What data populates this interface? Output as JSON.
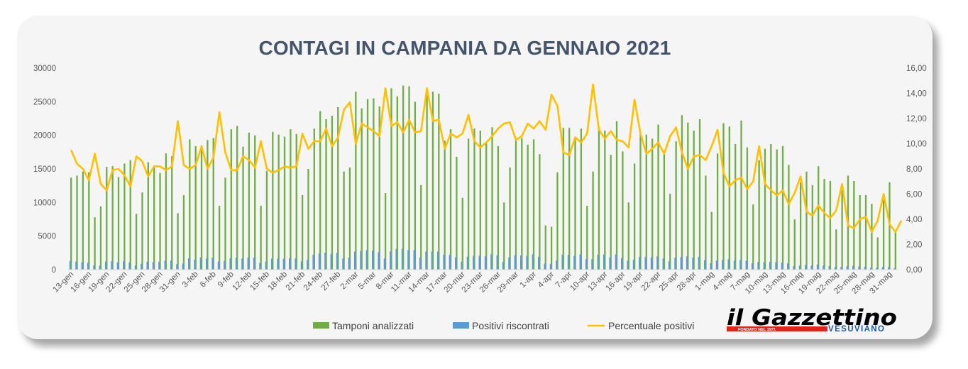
{
  "title": "CONTAGI IN CAMPANIA DA GENNAIO 2021",
  "legend": {
    "tamponi": "Tamponi analizzati",
    "positivi": "Positivi riscontrati",
    "percentuale": "Percentuale positivi"
  },
  "logo": {
    "name": "il Gazzettino",
    "subtitle": "VESUVIANO",
    "founded": "FONDATO NEL 1971"
  },
  "colors": {
    "tamponi": "#70ad47",
    "positivi": "#5b9bd5",
    "percentuale": "#ffc000",
    "axis_text": "#595959",
    "title": "#44546a"
  },
  "chart_data": {
    "type": "bar",
    "title": "CONTAGI IN CAMPANIA DA GENNAIO 2021",
    "y_left": {
      "ticks": [
        "0",
        "5000",
        "10000",
        "15000",
        "20000",
        "25000",
        "30000"
      ],
      "range": [
        0,
        30000
      ]
    },
    "y_right": {
      "ticks": [
        "0,00",
        "2,00",
        "4,00",
        "6,00",
        "8,00",
        "10,00",
        "12,00",
        "14,00",
        "16,00"
      ],
      "range": [
        0,
        16
      ]
    },
    "x_tick_labels": [
      "13-gen",
      "16-gen",
      "19-gen",
      "22-gen",
      "25-gen",
      "28-gen",
      "31-gen",
      "3-feb",
      "6-feb",
      "9-feb",
      "12-feb",
      "15-feb",
      "18-feb",
      "21-feb",
      "24-feb",
      "27-feb",
      "2-mar",
      "5-mar",
      "8-mar",
      "11-mar",
      "14-mar",
      "17-mar",
      "20-mar",
      "23-mar",
      "26-mar",
      "29-mar",
      "1-apr",
      "4-apr",
      "7-apr",
      "10-apr",
      "13-apr",
      "16-apr",
      "19-apr",
      "22-apr",
      "25-apr",
      "28-apr",
      "1-mag",
      "4-mag",
      "7-mag",
      "10-mag",
      "13-mag",
      "16-mag",
      "19-mag",
      "22-mag",
      "25-mag",
      "28-mag",
      "31-mag"
    ],
    "grid": false,
    "legend_position": "bottom",
    "series": [
      {
        "name": "Tamponi analizzati",
        "type": "bar",
        "values": [
          13700,
          14000,
          14600,
          14500,
          7800,
          9400,
          15300,
          15400,
          13800,
          15800,
          16300,
          8300,
          11500,
          16000,
          15200,
          14400,
          17300,
          16900,
          8400,
          11100,
          19400,
          18400,
          18500,
          19300,
          19600,
          9500,
          13700,
          20900,
          21400,
          18300,
          20400,
          20000,
          9500,
          14700,
          20500,
          20100,
          19800,
          20900,
          20200,
          11100,
          15000,
          21000,
          23600,
          22400,
          22900,
          24200,
          14600,
          15200,
          26500,
          24000,
          25400,
          25500,
          24300,
          11400,
          27000,
          25800,
          27400,
          27300,
          25000,
          12600,
          26000,
          26500,
          26200,
          19200,
          20900,
          16800,
          10700,
          19500,
          21000,
          20700,
          18800,
          21200,
          18400,
          10000,
          15200,
          19200,
          19600,
          18600,
          19400,
          17200,
          6600,
          6400,
          14500,
          21100,
          21100,
          19600,
          21000,
          9500,
          14600,
          21200,
          20700,
          17100,
          22100,
          17600,
          10000,
          15800,
          20300,
          20100,
          19500,
          21600,
          17700,
          11300,
          19100,
          23000,
          21900,
          20700,
          22400,
          14000,
          8600,
          17300,
          21800,
          21300,
          18700,
          22200,
          18200,
          9700,
          16300,
          18000,
          18700,
          17900,
          18400,
          15600,
          7500,
          13000,
          14600,
          12600,
          15400,
          13500,
          13200,
          6000,
          11800,
          14000,
          13200,
          11100,
          11100,
          9800,
          4800,
          10400,
          13000,
          5700
        ]
      },
      {
        "name": "Positivi riscontrati",
        "type": "bar",
        "values": [
          1300,
          1180,
          1100,
          1030,
          620,
          600,
          1200,
          1240,
          1090,
          1250,
          1090,
          620,
          860,
          1170,
          1130,
          1160,
          1320,
          1350,
          820,
          900,
          1700,
          1500,
          1800,
          1650,
          1780,
          1200,
          1300,
          1700,
          1800,
          1650,
          1800,
          1790,
          1000,
          1200,
          1630,
          1620,
          1630,
          1700,
          1650,
          1200,
          1450,
          2200,
          2400,
          2500,
          2300,
          2500,
          1650,
          1800,
          2700,
          2800,
          2900,
          2800,
          2600,
          1660,
          2700,
          3100,
          3100,
          2900,
          2900,
          1800,
          2700,
          2700,
          2700,
          2200,
          2200,
          1830,
          1170,
          1920,
          2040,
          2040,
          2000,
          2300,
          2120,
          1170,
          1830,
          2100,
          2100,
          2050,
          2300,
          1920,
          900,
          840,
          1350,
          2240,
          2200,
          2050,
          2280,
          1560,
          1570,
          2230,
          2260,
          1830,
          2280,
          1730,
          1330,
          1470,
          1880,
          1870,
          1840,
          1990,
          1650,
          1230,
          1780,
          1870,
          1990,
          1800,
          1910,
          1420,
          970,
          1340,
          1440,
          1550,
          1350,
          1440,
          1330,
          960,
          1140,
          1120,
          1170,
          1130,
          1030,
          950,
          550,
          600,
          690,
          600,
          760,
          600,
          530,
          420,
          410,
          490,
          550,
          470,
          420,
          290,
          280,
          390,
          370,
          220
        ]
      },
      {
        "name": "Percentuale positivi",
        "type": "line",
        "values": [
          9.5,
          8.4,
          8.0,
          7.1,
          9.2,
          6.8,
          6.3,
          7.9,
          8.0,
          7.5,
          6.6,
          9.0,
          8.6,
          7.4,
          8.2,
          8.2,
          7.9,
          8.2,
          11.8,
          8.3,
          8.0,
          8.3,
          9.8,
          8.0,
          8.9,
          12.5,
          9.3,
          7.9,
          7.9,
          9.0,
          8.7,
          8.1,
          10.2,
          8.0,
          7.7,
          7.9,
          8.2,
          8.1,
          8.2,
          10.8,
          9.6,
          10.2,
          10.2,
          11.2,
          9.8,
          10.5,
          12.7,
          13.3,
          10.0,
          11.6,
          11.3,
          11.0,
          10.6,
          14.4,
          11.4,
          11.7,
          10.9,
          11.9,
          10.9,
          11.0,
          14.4,
          11.8,
          11.9,
          9.6,
          10.8,
          10.5,
          10.8,
          12.3,
          10.2,
          9.7,
          10.1,
          10.6,
          11.2,
          11.6,
          11.7,
          10.3,
          10.6,
          11.6,
          11.2,
          11.8,
          11.1,
          13.9,
          13.0,
          9.3,
          9.1,
          10.5,
          10.1,
          10.8,
          14.7,
          11.1,
          10.4,
          11.0,
          10.3,
          10.2,
          9.7,
          13.5,
          10.8,
          9.2,
          9.6,
          10.1,
          9.2,
          10.6,
          11.3,
          9.3,
          8.0,
          9.0,
          9.1,
          8.7,
          9.8,
          11.1,
          7.7,
          6.6,
          7.1,
          7.3,
          6.4,
          7.0,
          9.8,
          6.8,
          6.3,
          5.9,
          6.3,
          5.2,
          6.1,
          7.4,
          4.6,
          4.3,
          5.1,
          4.5,
          4.1,
          4.7,
          6.8,
          3.5,
          3.3,
          4.0,
          4.2,
          3.0,
          3.9,
          6.0,
          3.6,
          3.0,
          3.9
        ]
      }
    ]
  }
}
